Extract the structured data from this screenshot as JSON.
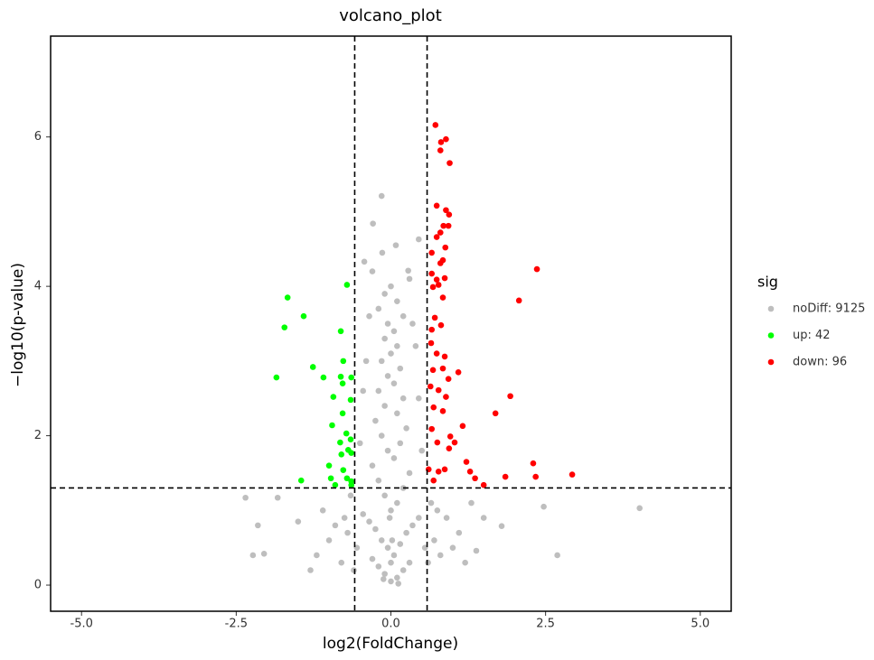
{
  "chart_data": {
    "type": "scatter",
    "title": "volcano_plot",
    "x_label": "log2(FoldChange)",
    "y_label": "−log10(p-value)",
    "legend_title": "sig",
    "legend": "right",
    "xlim": [
      -5.5,
      5.5
    ],
    "ylim": [
      -0.35,
      7.35
    ],
    "xticks": [
      {
        "value": -5,
        "label": "-5.0"
      },
      {
        "value": -2.5,
        "label": "-2.5"
      },
      {
        "value": 0,
        "label": "0.0"
      },
      {
        "value": 2.5,
        "label": "2.5"
      },
      {
        "value": 5,
        "label": "5.0"
      }
    ],
    "yticks": [
      0,
      2,
      4,
      6
    ],
    "grid": false,
    "vlines": [
      -0.585,
      0.585
    ],
    "hline": 1.301,
    "series": [
      {
        "name": "noDiff: 9125",
        "color": "#bebebe",
        "x": [
          0.0,
          0.1,
          -0.1,
          0.2,
          -0.2,
          0.3,
          -0.3,
          0.05,
          -0.05,
          0.15,
          -0.15,
          0.25,
          -0.25,
          0.35,
          -0.35,
          0.45,
          -0.45,
          0.0,
          0.1,
          -0.1,
          0.2,
          -0.2,
          0.3,
          -0.3,
          0.05,
          -0.05,
          0.15,
          -0.15,
          0.25,
          -0.25,
          0.1,
          -0.1,
          0.2,
          -0.2,
          0.05,
          -0.05,
          0.15,
          -0.15,
          0.0,
          0.1,
          -0.1,
          0.05,
          -0.05,
          0.2,
          -0.2,
          0.1,
          -0.1,
          0.0,
          0.3,
          -0.3,
          0.55,
          -0.55,
          0.6,
          -0.6,
          0.7,
          -0.7,
          0.8,
          -0.8,
          0.9,
          -0.9,
          1.0,
          -1.0,
          1.1,
          -1.1,
          1.2,
          -1.2,
          0.65,
          -0.65,
          0.75,
          -0.75,
          0.5,
          -0.5,
          0.45,
          -0.45,
          0.4,
          -0.4,
          0.35,
          -0.35,
          -0.15,
          -0.29,
          0.08,
          -0.14,
          0.45,
          -0.43,
          0.28,
          4.02,
          2.47,
          2.69,
          -2.35,
          -2.15,
          -2.23,
          -2.05,
          1.79,
          1.38,
          -1.83,
          1.5,
          -1.5,
          1.3,
          -1.3,
          0.0,
          0.02,
          -0.02,
          0.12,
          -0.12
        ],
        "y": [
          0.05,
          0.1,
          0.15,
          0.2,
          0.25,
          0.3,
          0.35,
          0.4,
          0.5,
          0.55,
          0.6,
          0.7,
          0.75,
          0.8,
          0.85,
          0.9,
          0.95,
          1.0,
          1.1,
          1.2,
          1.3,
          1.4,
          1.5,
          1.6,
          1.7,
          1.8,
          1.9,
          2.0,
          2.1,
          2.2,
          2.3,
          2.4,
          2.5,
          2.6,
          2.7,
          2.8,
          2.9,
          3.0,
          3.1,
          3.2,
          3.3,
          3.4,
          3.5,
          3.6,
          3.7,
          3.8,
          3.9,
          4.0,
          4.1,
          4.2,
          0.5,
          0.5,
          0.3,
          0.2,
          0.6,
          0.7,
          0.4,
          0.3,
          0.9,
          0.8,
          0.5,
          0.6,
          0.7,
          1.0,
          0.3,
          0.4,
          1.1,
          1.2,
          1.0,
          0.9,
          1.8,
          1.9,
          2.5,
          2.6,
          3.2,
          3.0,
          3.5,
          3.6,
          5.21,
          4.84,
          4.55,
          4.45,
          4.63,
          4.33,
          4.21,
          1.03,
          1.05,
          0.4,
          1.17,
          0.8,
          0.4,
          0.42,
          0.79,
          0.46,
          1.17,
          0.9,
          0.85,
          1.1,
          0.2,
          0.3,
          0.6,
          0.9,
          0.02,
          0.08
        ]
      },
      {
        "name": "up: 42",
        "color": "#00ff00",
        "x": [
          -1.67,
          -0.71,
          -1.41,
          -1.72,
          -0.81,
          -0.77,
          -1.26,
          -1.85,
          -1.09,
          -0.81,
          -0.78,
          -0.64,
          -0.93,
          -0.65,
          -0.78,
          -0.95,
          -0.72,
          -0.65,
          -0.82,
          -0.69,
          -0.8,
          -0.64,
          -1.0,
          -0.77,
          -0.71,
          -0.97,
          -0.64,
          -1.45,
          -0.9,
          -0.64
        ],
        "y": [
          3.85,
          4.02,
          3.6,
          3.45,
          3.4,
          3.0,
          2.92,
          2.78,
          2.78,
          2.79,
          2.7,
          2.78,
          2.52,
          2.48,
          2.3,
          2.14,
          2.03,
          1.95,
          1.91,
          1.81,
          1.75,
          1.77,
          1.6,
          1.54,
          1.43,
          1.43,
          1.39,
          1.4,
          1.34,
          1.34
        ]
      },
      {
        "name": "down: 96",
        "color": "#ff0000",
        "x": [
          0.72,
          0.81,
          0.89,
          0.8,
          0.95,
          0.74,
          0.89,
          0.94,
          0.85,
          0.93,
          0.8,
          0.74,
          0.88,
          0.66,
          0.84,
          0.8,
          2.36,
          0.66,
          0.74,
          0.87,
          0.68,
          0.77,
          2.07,
          0.84,
          0.71,
          0.66,
          0.81,
          0.65,
          0.74,
          0.87,
          1.09,
          0.68,
          0.84,
          0.93,
          0.64,
          0.77,
          1.93,
          0.89,
          0.69,
          0.84,
          1.69,
          1.16,
          0.66,
          0.96,
          0.75,
          1.03,
          0.94,
          1.22,
          2.3,
          0.61,
          0.77,
          0.87,
          1.28,
          2.93,
          1.85,
          2.34,
          1.36,
          0.69,
          1.5
        ],
        "y": [
          6.16,
          5.93,
          5.97,
          5.82,
          5.65,
          5.08,
          5.02,
          4.96,
          4.81,
          4.81,
          4.72,
          4.66,
          4.52,
          4.45,
          4.35,
          4.31,
          4.23,
          4.17,
          4.09,
          4.11,
          3.99,
          4.02,
          3.81,
          3.85,
          3.58,
          3.42,
          3.48,
          3.24,
          3.1,
          3.06,
          2.85,
          2.88,
          2.9,
          2.76,
          2.66,
          2.61,
          2.53,
          2.52,
          2.38,
          2.33,
          2.3,
          2.13,
          2.09,
          1.99,
          1.91,
          1.91,
          1.83,
          1.65,
          1.63,
          1.55,
          1.52,
          1.55,
          1.52,
          1.48,
          1.45,
          1.45,
          1.43,
          1.4,
          1.34
        ]
      }
    ]
  }
}
